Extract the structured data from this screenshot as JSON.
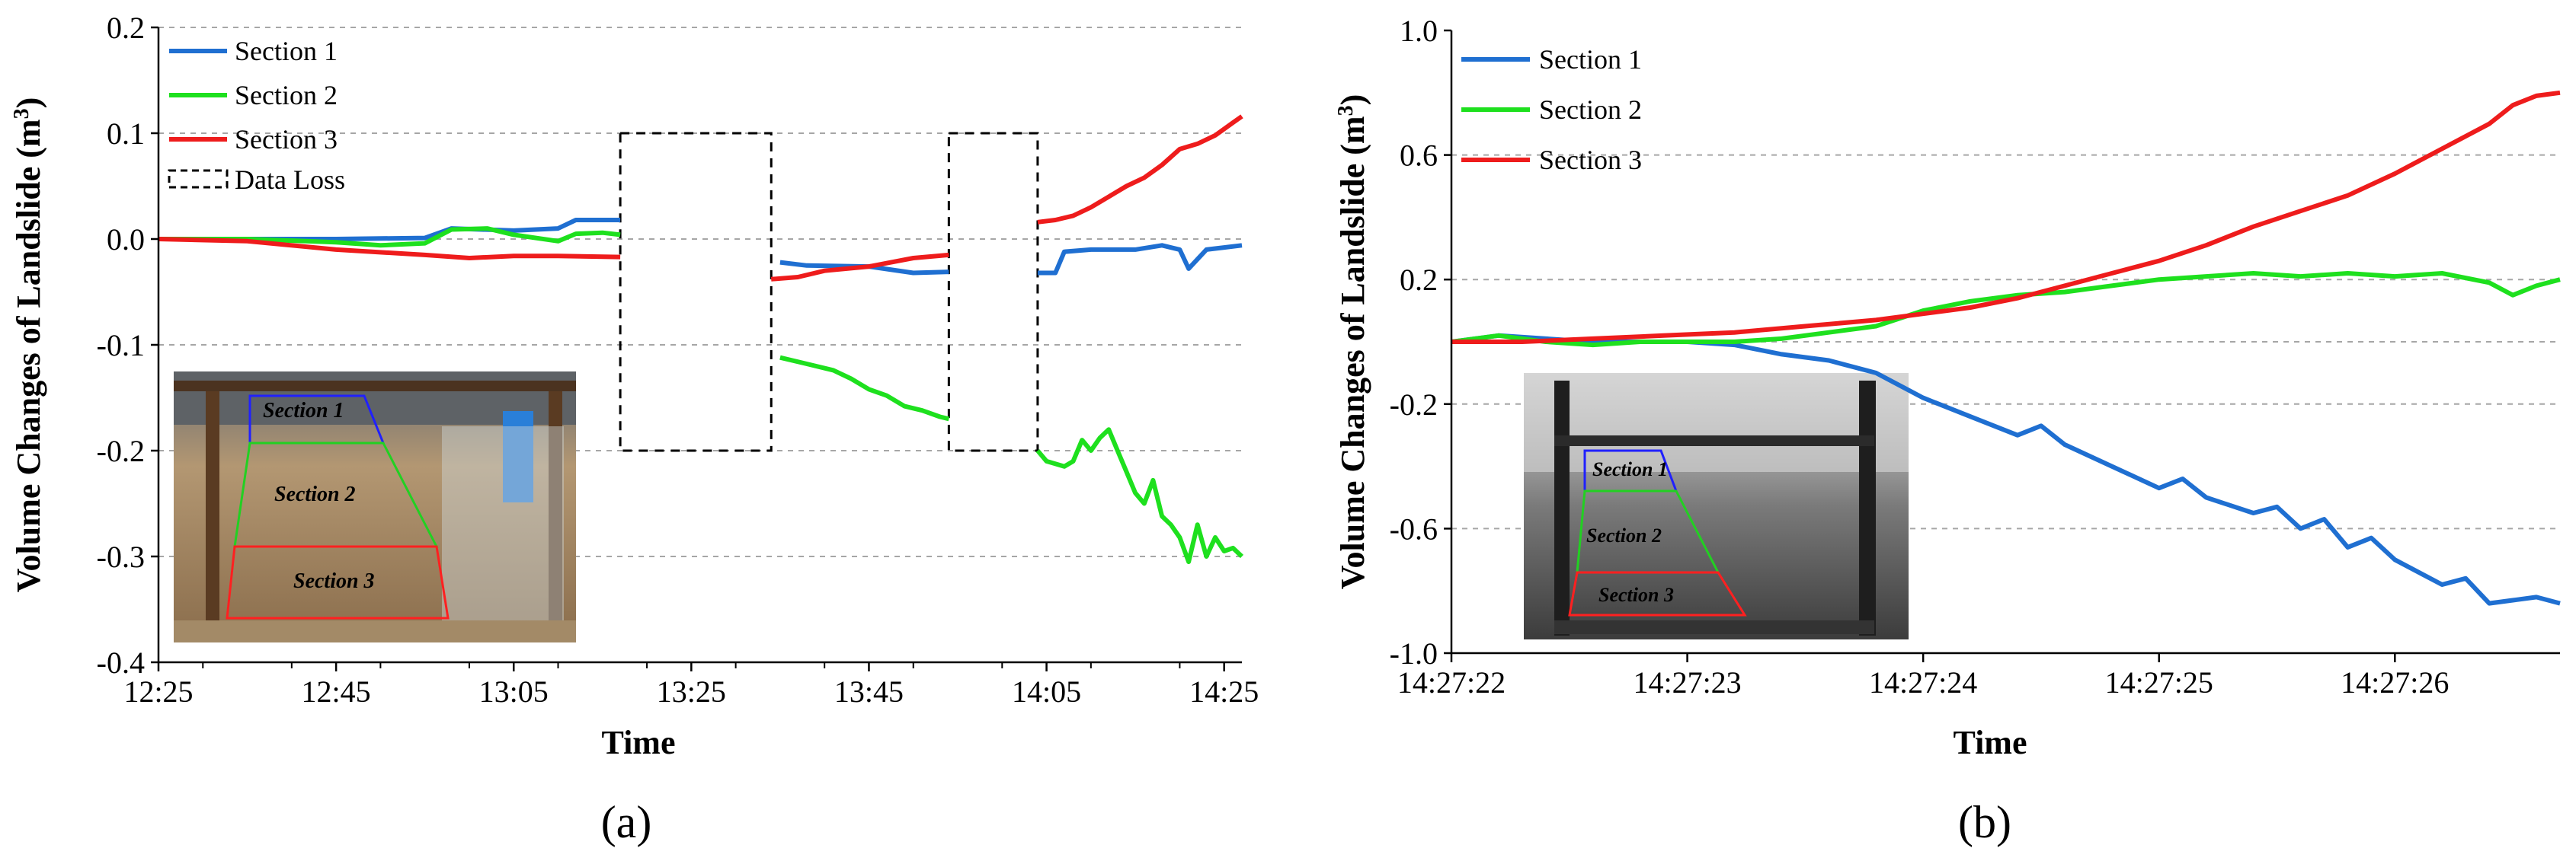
{
  "panels": [
    {
      "caption": "(a)",
      "colors": {
        "Section 1": "#1f6fd1",
        "Section 2": "#1ee01e",
        "Section 3": "#ee1c1c"
      },
      "chart_data": {
        "type": "line",
        "xlabel": "Time",
        "ylabel": "Volume  Changes of Landslide (m",
        "ylabel_sup": "3",
        "ylabel_close": ")",
        "ylim": [
          -0.4,
          0.2
        ],
        "yticks": [
          "0.2",
          "0.1",
          "0.0",
          "-0.1",
          "-0.2",
          "-0.3",
          "-0.4"
        ],
        "ytick_values": [
          0.2,
          0.1,
          0.0,
          -0.1,
          -0.2,
          -0.3,
          -0.4
        ],
        "xlim_minutes": [
          745,
          867
        ],
        "xticks": [
          "12:25",
          "12:45",
          "13:05",
          "13:25",
          "13:45",
          "14:05",
          "14:25"
        ],
        "xtick_minutes": [
          745,
          765,
          785,
          805,
          825,
          845,
          865
        ],
        "grid": "horizontal dashed",
        "legend_position": "top-left",
        "legend": [
          "Section 1",
          "Section 2",
          "Section 3",
          "Data Loss"
        ],
        "data_loss": [
          {
            "start": "13:17",
            "end": "13:34",
            "ymin": -0.2,
            "ymax": 0.1
          },
          {
            "start": "13:54",
            "end": "14:04",
            "ymin": -0.2,
            "ymax": 0.1
          }
        ],
        "series": [
          {
            "name": "Section 1",
            "segments": [
              {
                "x": [
                  "12:25",
                  "12:35",
                  "12:45",
                  "12:55",
                  "12:58",
                  "13:05",
                  "13:10",
                  "13:12",
                  "13:17"
                ],
                "y": [
                  0.0,
                  0.0,
                  0.0,
                  0.001,
                  0.01,
                  0.008,
                  0.01,
                  0.018,
                  0.018
                ]
              },
              {
                "x": [
                  "13:35",
                  "13:38",
                  "13:45",
                  "13:50",
                  "13:54"
                ],
                "y": [
                  -0.022,
                  -0.025,
                  -0.026,
                  -0.032,
                  -0.031
                ]
              },
              {
                "x": [
                  "14:04",
                  "14:06",
                  "14:07",
                  "14:10",
                  "14:15",
                  "14:18",
                  "14:20",
                  "14:21",
                  "14:23",
                  "14:25",
                  "14:27"
                ],
                "y": [
                  -0.032,
                  -0.032,
                  -0.012,
                  -0.01,
                  -0.01,
                  -0.006,
                  -0.01,
                  -0.028,
                  -0.01,
                  -0.008,
                  -0.006
                ]
              }
            ]
          },
          {
            "name": "Section 2",
            "segments": [
              {
                "x": [
                  "12:25",
                  "12:35",
                  "12:45",
                  "12:50",
                  "12:55",
                  "12:58",
                  "13:02",
                  "13:05",
                  "13:10",
                  "13:12",
                  "13:15",
                  "13:17"
                ],
                "y": [
                  0.0,
                  0.0,
                  -0.003,
                  -0.006,
                  -0.004,
                  0.009,
                  0.01,
                  0.004,
                  -0.002,
                  0.005,
                  0.006,
                  0.004
                ]
              },
              {
                "x": [
                  "13:35",
                  "13:38",
                  "13:41",
                  "13:43",
                  "13:45",
                  "13:47",
                  "13:49",
                  "13:51",
                  "13:53",
                  "13:54"
                ],
                "y": [
                  -0.112,
                  -0.118,
                  -0.124,
                  -0.132,
                  -0.142,
                  -0.148,
                  -0.158,
                  -0.162,
                  -0.168,
                  -0.17
                ]
              },
              {
                "x": [
                  "14:04",
                  "14:05",
                  "14:07",
                  "14:08",
                  "14:09",
                  "14:10",
                  "14:11",
                  "14:12",
                  "14:13",
                  "14:14",
                  "14:15",
                  "14:16",
                  "14:17",
                  "14:18",
                  "14:19",
                  "14:20",
                  "14:21",
                  "14:22",
                  "14:23",
                  "14:24",
                  "14:25",
                  "14:26",
                  "14:27"
                ],
                "y": [
                  -0.2,
                  -0.21,
                  -0.215,
                  -0.21,
                  -0.19,
                  -0.2,
                  -0.188,
                  -0.18,
                  -0.2,
                  -0.22,
                  -0.24,
                  -0.25,
                  -0.228,
                  -0.262,
                  -0.27,
                  -0.282,
                  -0.305,
                  -0.27,
                  -0.3,
                  -0.282,
                  -0.295,
                  -0.292,
                  -0.3
                ]
              }
            ]
          },
          {
            "name": "Section 3",
            "segments": [
              {
                "x": [
                  "12:25",
                  "12:35",
                  "12:45",
                  "12:55",
                  "13:00",
                  "13:05",
                  "13:10",
                  "13:17"
                ],
                "y": [
                  0.0,
                  -0.002,
                  -0.01,
                  -0.015,
                  -0.018,
                  -0.016,
                  -0.016,
                  -0.017
                ]
              },
              {
                "x": [
                  "13:34",
                  "13:37",
                  "13:40",
                  "13:45",
                  "13:50",
                  "13:54"
                ],
                "y": [
                  -0.038,
                  -0.036,
                  -0.03,
                  -0.026,
                  -0.018,
                  -0.015
                ]
              },
              {
                "x": [
                  "14:04",
                  "14:06",
                  "14:08",
                  "14:10",
                  "14:12",
                  "14:14",
                  "14:16",
                  "14:18",
                  "14:20",
                  "14:22",
                  "14:24",
                  "14:26",
                  "14:27"
                ],
                "y": [
                  0.016,
                  0.018,
                  0.022,
                  0.03,
                  0.04,
                  0.05,
                  0.058,
                  0.07,
                  0.085,
                  0.09,
                  0.098,
                  0.11,
                  0.116
                ]
              }
            ]
          }
        ]
      },
      "inset": {
        "labels": [
          "Section 1",
          "Section 2",
          "Section 3"
        ],
        "label_colors": [
          "#1f1fd0",
          "#22b81f",
          "#e01b1b"
        ]
      }
    },
    {
      "caption": "(b)",
      "colors": {
        "Section 1": "#1f6fd1",
        "Section 2": "#1ee01e",
        "Section 3": "#ee1c1c"
      },
      "chart_data": {
        "type": "line",
        "xlabel": "Time",
        "ylabel": "Volume  Changes of Landslide (m",
        "ylabel_sup": "3",
        "ylabel_close": ")",
        "ylim": [
          -1.0,
          1.0
        ],
        "yticks": [
          "1.0",
          "0.6",
          "0.2",
          "-0.2",
          "-0.6",
          "-1.0"
        ],
        "ytick_values": [
          1.0,
          0.6,
          0.2,
          -0.2,
          -0.6,
          -1.0
        ],
        "gridlines": [
          0.6,
          0.2,
          0.0,
          -0.2,
          -0.6
        ],
        "xlim_seconds": [
          0,
          4.7
        ],
        "xticks": [
          "14:27:22",
          "14:27:23",
          "14:27:24",
          "14:27:25",
          "14:27:26"
        ],
        "xtick_seconds": [
          0,
          1,
          2,
          3,
          4
        ],
        "grid": "horizontal dashed",
        "legend_position": "top-left",
        "legend": [
          "Section 1",
          "Section 2",
          "Section 3"
        ],
        "series": [
          {
            "name": "Section 1",
            "x": [
              0,
              0.2,
              0.4,
              0.6,
              0.8,
              1.0,
              1.2,
              1.4,
              1.6,
              1.8,
              2.0,
              2.2,
              2.4,
              2.5,
              2.6,
              2.8,
              3.0,
              3.1,
              3.2,
              3.4,
              3.5,
              3.6,
              3.7,
              3.8,
              3.9,
              4.0,
              4.1,
              4.2,
              4.3,
              4.4,
              4.5,
              4.6,
              4.7
            ],
            "y": [
              0.0,
              0.02,
              0.01,
              0.0,
              0.0,
              0.0,
              -0.01,
              -0.04,
              -0.06,
              -0.1,
              -0.18,
              -0.24,
              -0.3,
              -0.27,
              -0.33,
              -0.4,
              -0.47,
              -0.44,
              -0.5,
              -0.55,
              -0.53,
              -0.6,
              -0.57,
              -0.66,
              -0.63,
              -0.7,
              -0.74,
              -0.78,
              -0.76,
              -0.84,
              -0.83,
              -0.82,
              -0.84
            ]
          },
          {
            "name": "Section 2",
            "x": [
              0,
              0.2,
              0.4,
              0.6,
              0.8,
              1.0,
              1.2,
              1.4,
              1.6,
              1.8,
              2.0,
              2.2,
              2.4,
              2.6,
              2.8,
              3.0,
              3.2,
              3.4,
              3.6,
              3.8,
              4.0,
              4.2,
              4.4,
              4.5,
              4.6,
              4.7
            ],
            "y": [
              0.0,
              0.02,
              0.0,
              -0.01,
              0.0,
              0.0,
              0.0,
              0.01,
              0.03,
              0.05,
              0.1,
              0.13,
              0.15,
              0.16,
              0.18,
              0.2,
              0.21,
              0.22,
              0.21,
              0.22,
              0.21,
              0.22,
              0.19,
              0.15,
              0.18,
              0.2
            ]
          },
          {
            "name": "Section 3",
            "x": [
              0,
              0.3,
              0.6,
              0.9,
              1.2,
              1.5,
              1.8,
              2.0,
              2.2,
              2.4,
              2.6,
              2.8,
              3.0,
              3.2,
              3.4,
              3.6,
              3.8,
              4.0,
              4.2,
              4.4,
              4.5,
              4.6,
              4.7
            ],
            "y": [
              0.0,
              0.0,
              0.01,
              0.02,
              0.03,
              0.05,
              0.07,
              0.09,
              0.11,
              0.14,
              0.18,
              0.22,
              0.26,
              0.31,
              0.37,
              0.42,
              0.47,
              0.54,
              0.62,
              0.7,
              0.76,
              0.79,
              0.8
            ]
          }
        ]
      },
      "inset": {
        "labels": [
          "Section 1",
          "Section 2",
          "Section 3"
        ],
        "label_colors": [
          "#1f1fd0",
          "#22b81f",
          "#e01b1b"
        ]
      }
    }
  ]
}
